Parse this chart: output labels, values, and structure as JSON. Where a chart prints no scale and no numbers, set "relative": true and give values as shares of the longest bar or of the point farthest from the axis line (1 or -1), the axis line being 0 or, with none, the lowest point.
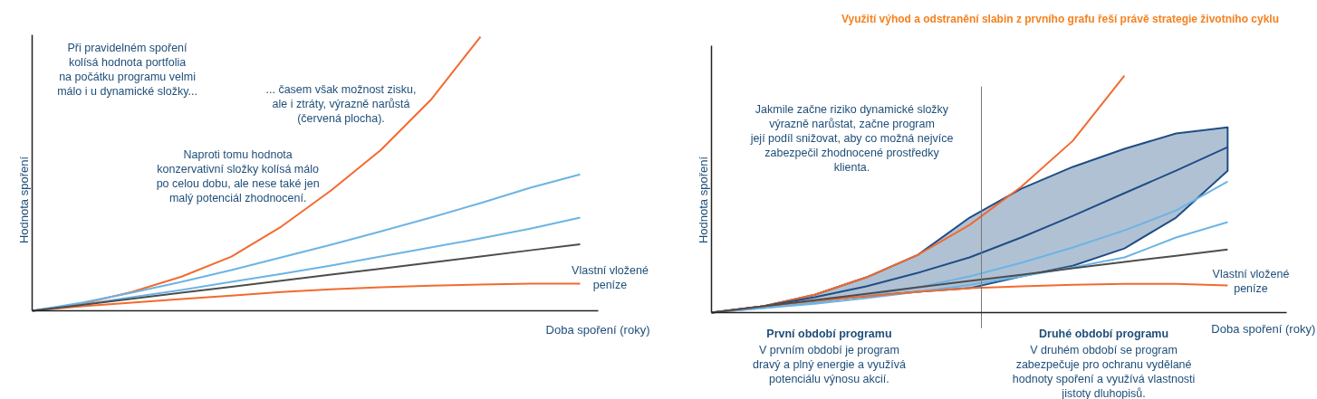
{
  "chart_data": [
    {
      "type": "line",
      "relative": true,
      "xlabel": "Doba spoření (roky)",
      "ylabel": "Hodnota spoření",
      "categories": [
        null,
        null,
        null,
        null,
        null,
        null,
        null,
        null,
        null,
        null,
        null,
        null
      ],
      "series": [
        {
          "color": "#f26a2e",
          "values": [
            0,
            0.026,
            0.069,
            0.125,
            0.198,
            0.307,
            0.439,
            0.587,
            0.769,
            1.0,
            null,
            null
          ]
        },
        {
          "color": "#f26a2e",
          "values": [
            0,
            0.017,
            0.03,
            0.043,
            0.056,
            0.069,
            0.079,
            0.086,
            0.092,
            0.096,
            0.099,
            0.099
          ]
        },
        {
          "color": "#6cb4e4",
          "values": [
            0,
            0.03,
            0.066,
            0.106,
            0.149,
            0.195,
            0.241,
            0.29,
            0.34,
            0.393,
            0.449,
            0.498
          ]
        },
        {
          "color": "#6cb4e4",
          "values": [
            0,
            0.023,
            0.05,
            0.076,
            0.106,
            0.135,
            0.165,
            0.198,
            0.231,
            0.264,
            0.3,
            0.34
          ]
        },
        {
          "name": "Vlastní vložené\npeníze",
          "color": "#4d4d4d",
          "values": [
            0,
            0.022,
            0.044,
            0.066,
            0.088,
            0.11,
            0.132,
            0.154,
            0.176,
            0.198,
            0.221,
            0.243
          ]
        }
      ],
      "annotations": [
        "Při pravidelném spoření\nkolísá hodnota portfolia\nna počátku programu velmi\nmálo i u dynamické složky...",
        "... časem však možnost zisku,\nale i ztráty, výrazně narůstá\n(červená plocha).",
        "Naproti tomu hodnota\nkonzervativní složky kolísá málo\npo celou dobu, ale nese také jen\nmalý potenciál zhodnocení."
      ]
    },
    {
      "type": "line",
      "relative": true,
      "title": "Využití výhod a odstranění slabin z prvního grafu řeší právě strategie životního cyklu",
      "xlabel": "Doba spoření (roky)",
      "ylabel": "Hodnota spoření",
      "categories": [
        null,
        null,
        null,
        null,
        null,
        null,
        null,
        null,
        null,
        null,
        null
      ],
      "series": [
        {
          "color": "#f26a2e",
          "values": [
            0,
            0.027,
            0.076,
            0.149,
            0.244,
            0.37,
            0.531,
            0.725,
            1.0,
            null,
            null
          ]
        },
        {
          "color": "#1f4e85",
          "values": [
            0,
            0.027,
            0.065,
            0.111,
            0.168,
            0.233,
            0.317,
            0.408,
            0.504,
            0.599,
            0.698
          ],
          "lower": [
            0,
            0.027,
            0.05,
            0.069,
            0.088,
            0.103,
            0.153,
            0.198,
            0.271,
            0.401,
            0.599
          ],
          "upper": [
            0,
            0.027,
            0.076,
            0.149,
            0.244,
            0.401,
            0.523,
            0.615,
            0.691,
            0.756,
            0.782
          ]
        },
        {
          "color": "#6cb4e4",
          "values": [
            0,
            0.019,
            0.042,
            0.073,
            0.107,
            0.153,
            0.21,
            0.275,
            0.347,
            0.431,
            0.553
          ]
        },
        {
          "color": "#6cb4e4",
          "values": [
            0,
            0.019,
            0.038,
            0.061,
            0.088,
            0.118,
            0.153,
            0.191,
            0.233,
            0.317,
            0.382
          ]
        },
        {
          "color": "#f26a2e",
          "values": [
            0,
            0.027,
            0.05,
            0.069,
            0.088,
            0.103,
            0.111,
            0.118,
            0.122,
            0.122,
            0.115
          ]
        },
        {
          "name": "Vlastní vložené\npeníze",
          "color": "#4d4d4d",
          "values": [
            0,
            0.027,
            0.053,
            0.08,
            0.107,
            0.134,
            0.16,
            0.187,
            0.214,
            0.24,
            0.267
          ]
        }
      ],
      "annotations": [
        "Jakmile začne riziko dynamické složky\nvýrazně narůstat, začne program\njejí podíl snižovat, aby co možná nejvíce\nzabezpečil zhodnocené prostředky\nklienta.",
        "První období programu",
        "V prvním období je program\ndravý a plný energie a využívá\npotenciálu výnosu akcií.",
        "Druhé období programu",
        "V druhém období se program\nzabezpečuje pro ochranu vydělané\nhodnoty spoření a využívá vlastnosti\njistoty dluhopisů."
      ]
    }
  ]
}
